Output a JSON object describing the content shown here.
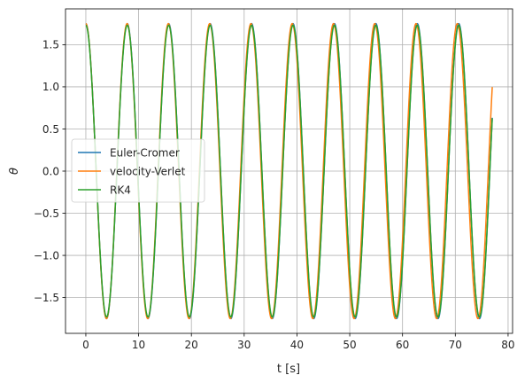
{
  "chart_data": {
    "type": "line",
    "title": "",
    "xlabel": "t [s]",
    "ylabel": "θ",
    "xlim": [
      -3.85,
      80.85
    ],
    "ylim": [
      -1.925,
      1.925
    ],
    "xticks": [
      0,
      10,
      20,
      30,
      40,
      50,
      60,
      70,
      80
    ],
    "xtick_labels": [
      "0",
      "10",
      "20",
      "30",
      "40",
      "50",
      "60",
      "70",
      "80"
    ],
    "yticks": [
      -1.5,
      -1.0,
      -0.5,
      0.0,
      0.5,
      1.0,
      1.5
    ],
    "ytick_labels": [
      "−1.5",
      "−1.0",
      "−0.5",
      "0.0",
      "0.5",
      "1.0",
      "1.5"
    ],
    "grid": true,
    "legend_position": "center-left",
    "t_start": 0,
    "t_end": 77,
    "amplitude": 1.75,
    "series": [
      {
        "name": "Euler-Cromer",
        "color": "#1f77b4",
        "period": 7.85,
        "amplitude": 1.75
      },
      {
        "name": "velocity-Verlet",
        "color": "#ff7f0e",
        "period": 7.82,
        "amplitude": 1.75
      },
      {
        "name": "RK4",
        "color": "#2ca02c",
        "period": 7.85,
        "amplitude": 1.73
      }
    ]
  }
}
